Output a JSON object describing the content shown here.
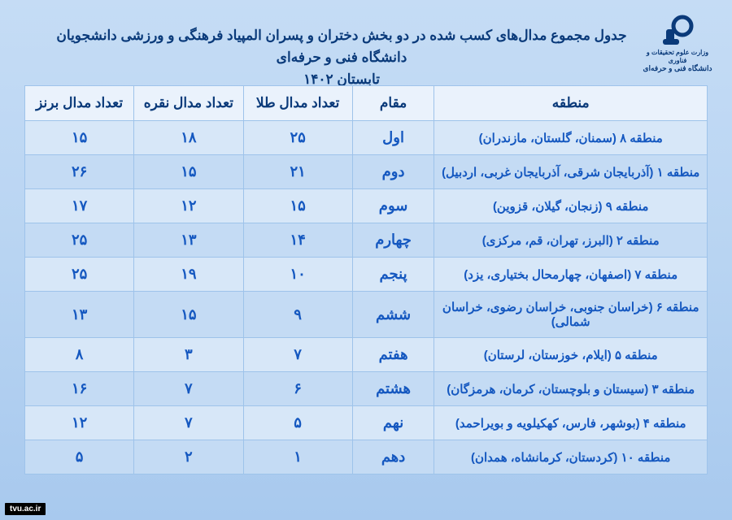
{
  "logo": {
    "caption1": "وزارت علوم تحقیقات و فناوری",
    "caption2": "دانشگاه فنی و حرفه‌ای",
    "color": "#0a3a7a"
  },
  "title": {
    "line1": "جدول مجموع مدال‌های کسب شده در دو بخش دختران و پسران المپیاد فرهنگی و ورزشی دانشجویان دانشگاه فنی و حرفه‌ای",
    "line2": "تابستان ۱۴۰۲"
  },
  "table": {
    "headers": {
      "region": "منطقه",
      "rank": "مقام",
      "gold": "تعداد مدال طلا",
      "silver": "تعداد مدال نقره",
      "bronze": "تعداد مدال برنز"
    },
    "rows": [
      {
        "region": "منطقه ۸ (سمنان، گلستان، مازندران)",
        "rank": "اول",
        "gold": "۲۵",
        "silver": "۱۸",
        "bronze": "۱۵"
      },
      {
        "region": "منطقه ۱ (آذربایجان شرقی، آذربایجان غربی، اردبیل)",
        "rank": "دوم",
        "gold": "۲۱",
        "silver": "۱۵",
        "bronze": "۲۶"
      },
      {
        "region": "منطقه ۹ (زنجان، گیلان، قزوین)",
        "rank": "سوم",
        "gold": "۱۵",
        "silver": "۱۲",
        "bronze": "۱۷"
      },
      {
        "region": "منطقه ۲ (البرز، تهران، قم، مرکزی)",
        "rank": "چهارم",
        "gold": "۱۴",
        "silver": "۱۳",
        "bronze": "۲۵"
      },
      {
        "region": "منطقه ۷ (اصفهان، چهارمحال بختیاری، یزد)",
        "rank": "پنجم",
        "gold": "۱۰",
        "silver": "۱۹",
        "bronze": "۲۵"
      },
      {
        "region": "منطقه ۶ (خراسان جنوبی، خراسان رضوی، خراسان شمالی)",
        "rank": "ششم",
        "gold": "۹",
        "silver": "۱۵",
        "bronze": "۱۳"
      },
      {
        "region": "منطقه ۵ (ایلام، خوزستان، لرستان)",
        "rank": "هفتم",
        "gold": "۷",
        "silver": "۳",
        "bronze": "۸"
      },
      {
        "region": "منطقه ۳ (سیستان و بلوچستان، کرمان، هرمزگان)",
        "rank": "هشتم",
        "gold": "۶",
        "silver": "۷",
        "bronze": "۱۶"
      },
      {
        "region": "منطقه ۴ (بوشهر، فارس، کهکیلویه و بویراحمد)",
        "rank": "نهم",
        "gold": "۵",
        "silver": "۷",
        "bronze": "۱۲"
      },
      {
        "region": "منطقه ۱۰ (کردستان، کرمانشاه، همدان)",
        "rank": "دهم",
        "gold": "۱",
        "silver": "۲",
        "bronze": "۵"
      }
    ]
  },
  "colors": {
    "header_bg": "#eaf2fc",
    "row_odd_bg": "#d7e7f8",
    "row_even_bg": "#c4dbf4",
    "border": "#9ec3ea",
    "text_header": "#0a3a7a",
    "text_cell": "#1558c0",
    "page_bg_top": "#c5dcf5",
    "page_bg_bottom": "#a8c9ee"
  },
  "watermark": "tvu.ac.ir"
}
